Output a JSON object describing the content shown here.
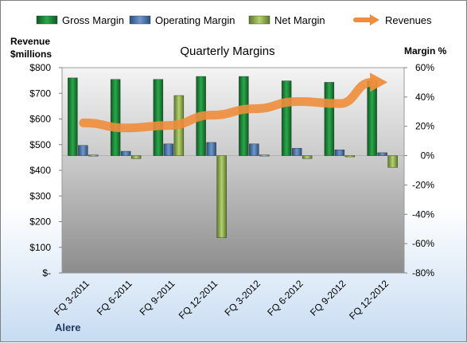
{
  "chart_data": {
    "type": "bar",
    "title": "Quarterly Margins",
    "company": "Alere",
    "categories": [
      "FQ 3-2011",
      "FQ 6-2011",
      "FQ 9-2011",
      "FQ 12-2011",
      "FQ 3-2012",
      "FQ 6-2012",
      "FQ 9-2012",
      "FQ 12-2012"
    ],
    "series": [
      {
        "name": "Gross Margin",
        "axis": "right",
        "color": "#1e8a3a",
        "values": [
          53,
          52,
          52,
          54,
          54,
          51,
          50,
          51
        ]
      },
      {
        "name": "Operating Margin",
        "axis": "right",
        "color": "#4f81bd",
        "values": [
          7,
          3,
          8,
          9,
          8,
          5,
          4,
          2
        ]
      },
      {
        "name": "Net Margin",
        "axis": "right",
        "color": "#9bbb59",
        "values": [
          0.5,
          -2,
          41,
          -56,
          0.5,
          -2,
          -0.5,
          -8
        ]
      },
      {
        "name": "Revenues",
        "axis": "left",
        "type": "line",
        "color": "#f08d3c",
        "values": [
          585,
          565,
          575,
          615,
          640,
          668,
          660,
          743
        ]
      }
    ],
    "left_axis": {
      "label_line1": "Revenue",
      "label_line2": "$millions",
      "min": 0,
      "max": 800,
      "step": 100,
      "tick_labels": [
        "$-",
        "$100",
        "$200",
        "$300",
        "$400",
        "$500",
        "$600",
        "$700",
        "$800"
      ]
    },
    "right_axis": {
      "label": "Margin %",
      "min": -80,
      "max": 60,
      "step": 20,
      "tick_labels": [
        "-80%",
        "-60%",
        "-40%",
        "-20%",
        "0%",
        "20%",
        "40%",
        "60%"
      ]
    },
    "legend_position": "top",
    "grid": false
  }
}
